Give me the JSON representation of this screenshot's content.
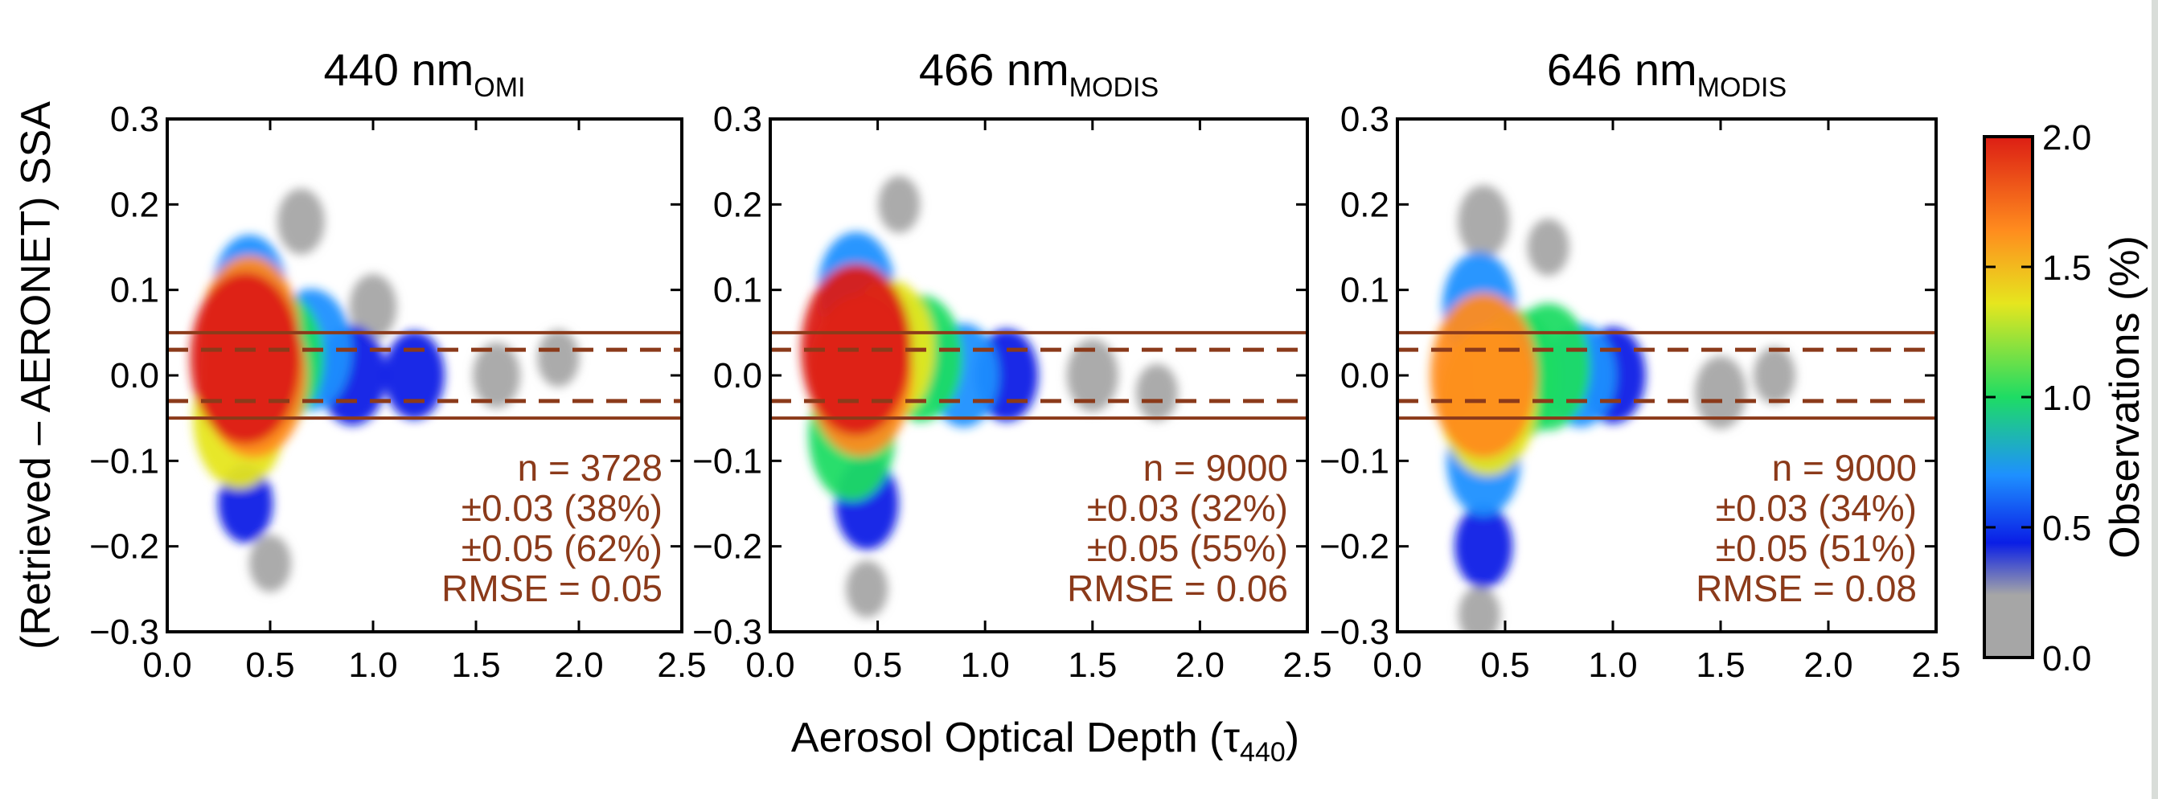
{
  "figure": {
    "ylabel": "(Retrieved – AERONET) SSA",
    "xlabel": "Aerosol Optical Depth (τ",
    "xlabel_sub": "440",
    "xlabel_close": ")",
    "colorbar": {
      "label": "Observations (%)",
      "range": [
        0.0,
        2.0
      ],
      "ticks": [
        "0.0",
        "0.5",
        "1.0",
        "1.5",
        "2.0"
      ],
      "tick_values": [
        0.0,
        0.5,
        1.0,
        1.5,
        2.0
      ],
      "colormap": [
        "#a6a6a6",
        "#0a1ee6",
        "#1e90ff",
        "#1edc64",
        "#e6e61e",
        "#ff8c1e",
        "#dc1e14"
      ]
    }
  },
  "chart_data": [
    {
      "type": "heatmap",
      "title": "440 nm",
      "title_sub": "OMI",
      "xlim": [
        0.0,
        2.5
      ],
      "ylim": [
        -0.3,
        0.3
      ],
      "xticks": [
        0.0,
        0.5,
        1.0,
        1.5,
        2.0,
        2.5
      ],
      "xtick_labels": [
        "0.0",
        "0.5",
        "1.0",
        "1.5",
        "2.0",
        "2.5"
      ],
      "yticks": [
        -0.3,
        -0.2,
        -0.1,
        0.0,
        0.1,
        0.2,
        0.3
      ],
      "ytick_labels": [
        "−0.3",
        "−0.2",
        "−0.1",
        "0.0",
        "0.1",
        "0.2",
        "0.3"
      ],
      "reference_lines": {
        "solid": [
          0.05,
          -0.05
        ],
        "dashed": [
          0.03,
          -0.03
        ]
      },
      "stats": [
        "n =  3728",
        "±0.03 (38%)",
        "±0.05 (62%)",
        "RMSE = 0.05"
      ],
      "density": [
        {
          "x": 0.38,
          "y": 0.02,
          "value": 2.0
        },
        {
          "x": 0.42,
          "y": 0.0,
          "value": 1.8
        },
        {
          "x": 0.4,
          "y": 0.05,
          "value": 1.5
        },
        {
          "x": 0.55,
          "y": 0.02,
          "value": 1.0
        },
        {
          "x": 0.7,
          "y": 0.03,
          "value": 0.8
        },
        {
          "x": 0.9,
          "y": 0.0,
          "value": 0.45
        },
        {
          "x": 1.2,
          "y": 0.0,
          "value": 0.3
        },
        {
          "x": 0.35,
          "y": -0.05,
          "value": 1.2
        },
        {
          "x": 0.4,
          "y": 0.1,
          "value": 0.6
        },
        {
          "x": 0.38,
          "y": -0.15,
          "value": 0.2
        },
        {
          "x": 1.0,
          "y": 0.08,
          "value": 0.1
        },
        {
          "x": 1.6,
          "y": 0.0,
          "value": 0.1
        },
        {
          "x": 1.9,
          "y": 0.02,
          "value": 0.05
        },
        {
          "x": 0.65,
          "y": 0.18,
          "value": 0.1
        },
        {
          "x": 0.5,
          "y": -0.22,
          "value": 0.05
        }
      ]
    },
    {
      "type": "heatmap",
      "title": "466 nm",
      "title_sub": "MODIS",
      "xlim": [
        0.0,
        2.5
      ],
      "ylim": [
        -0.3,
        0.3
      ],
      "xticks": [
        0.0,
        0.5,
        1.0,
        1.5,
        2.0,
        2.5
      ],
      "xtick_labels": [
        "0.0",
        "0.5",
        "1.0",
        "1.5",
        "2.0",
        "2.5"
      ],
      "yticks": [
        -0.3,
        -0.2,
        -0.1,
        0.0,
        0.1,
        0.2,
        0.3
      ],
      "ytick_labels": [
        "−0.3",
        "−0.2",
        "−0.1",
        "0.0",
        "0.1",
        "0.2",
        "0.3"
      ],
      "reference_lines": {
        "solid": [
          0.05,
          -0.05
        ],
        "dashed": [
          0.03,
          -0.03
        ]
      },
      "stats": [
        "n =  9000",
        "±0.03 (32%)",
        "±0.05 (55%)",
        "RMSE = 0.06"
      ],
      "density": [
        {
          "x": 0.4,
          "y": 0.03,
          "value": 2.0
        },
        {
          "x": 0.42,
          "y": 0.0,
          "value": 1.7
        },
        {
          "x": 0.55,
          "y": 0.03,
          "value": 1.2
        },
        {
          "x": 0.7,
          "y": 0.02,
          "value": 0.9
        },
        {
          "x": 0.9,
          "y": 0.0,
          "value": 0.5
        },
        {
          "x": 1.1,
          "y": 0.0,
          "value": 0.35
        },
        {
          "x": 0.38,
          "y": -0.07,
          "value": 1.0
        },
        {
          "x": 0.4,
          "y": 0.1,
          "value": 0.7
        },
        {
          "x": 0.45,
          "y": -0.15,
          "value": 0.35
        },
        {
          "x": 1.5,
          "y": 0.0,
          "value": 0.15
        },
        {
          "x": 0.45,
          "y": -0.25,
          "value": 0.05
        },
        {
          "x": 0.6,
          "y": 0.2,
          "value": 0.05
        },
        {
          "x": 1.8,
          "y": -0.02,
          "value": 0.05
        }
      ]
    },
    {
      "type": "heatmap",
      "title": "646 nm",
      "title_sub": "MODIS",
      "xlim": [
        0.0,
        2.5
      ],
      "ylim": [
        -0.3,
        0.3
      ],
      "xticks": [
        0.0,
        0.5,
        1.0,
        1.5,
        2.0,
        2.5
      ],
      "xtick_labels": [
        "0.0",
        "0.5",
        "1.0",
        "1.5",
        "2.0",
        "2.5"
      ],
      "yticks": [
        -0.3,
        -0.2,
        -0.1,
        0.0,
        0.1,
        0.2,
        0.3
      ],
      "ytick_labels": [
        "−0.3",
        "−0.2",
        "−0.1",
        "0.0",
        "0.1",
        "0.2",
        "0.3"
      ],
      "reference_lines": {
        "solid": [
          0.05,
          -0.05
        ],
        "dashed": [
          0.03,
          -0.03
        ]
      },
      "stats": [
        "n =  9000",
        "±0.03 (34%)",
        "±0.05 (51%)",
        "RMSE = 0.08"
      ],
      "density": [
        {
          "x": 0.4,
          "y": 0.0,
          "value": 1.8
        },
        {
          "x": 0.42,
          "y": -0.03,
          "value": 1.4
        },
        {
          "x": 0.55,
          "y": 0.0,
          "value": 1.0
        },
        {
          "x": 0.7,
          "y": 0.01,
          "value": 0.9
        },
        {
          "x": 0.85,
          "y": 0.0,
          "value": 0.5
        },
        {
          "x": 1.0,
          "y": 0.0,
          "value": 0.4
        },
        {
          "x": 0.38,
          "y": 0.08,
          "value": 0.6
        },
        {
          "x": 0.4,
          "y": -0.1,
          "value": 0.6
        },
        {
          "x": 0.4,
          "y": -0.2,
          "value": 0.25
        },
        {
          "x": 0.4,
          "y": 0.18,
          "value": 0.15
        },
        {
          "x": 1.5,
          "y": -0.02,
          "value": 0.15
        },
        {
          "x": 1.75,
          "y": 0.0,
          "value": 0.05
        },
        {
          "x": 0.38,
          "y": -0.28,
          "value": 0.05
        },
        {
          "x": 0.7,
          "y": 0.15,
          "value": 0.05
        }
      ]
    }
  ]
}
